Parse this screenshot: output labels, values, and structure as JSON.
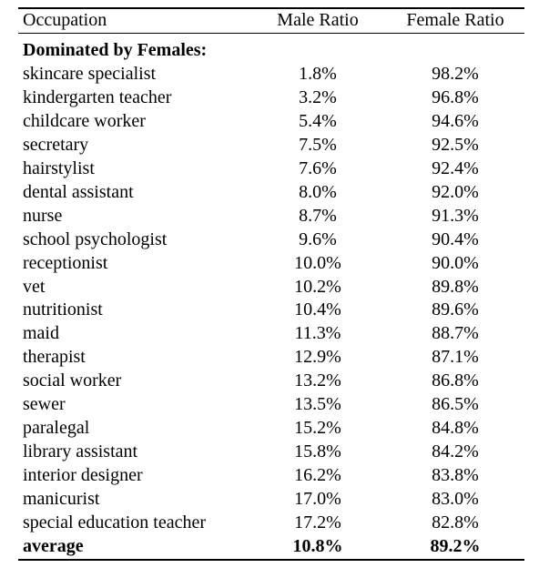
{
  "table": {
    "header": [
      "Occupation",
      "Male Ratio",
      "Female Ratio"
    ],
    "section_title": "Dominated by Females:",
    "rows": [
      [
        "skincare specialist",
        "1.8%",
        "98.2%"
      ],
      [
        "kindergarten teacher",
        "3.2%",
        "96.8%"
      ],
      [
        "childcare worker",
        "5.4%",
        "94.6%"
      ],
      [
        "secretary",
        "7.5%",
        "92.5%"
      ],
      [
        "hairstylist",
        "7.6%",
        "92.4%"
      ],
      [
        "dental assistant",
        "8.0%",
        "92.0%"
      ],
      [
        "nurse",
        "8.7%",
        "91.3%"
      ],
      [
        "school psychologist",
        "9.6%",
        "90.4%"
      ],
      [
        "receptionist",
        "10.0%",
        "90.0%"
      ],
      [
        "vet",
        "10.2%",
        "89.8%"
      ],
      [
        "nutritionist",
        "10.4%",
        "89.6%"
      ],
      [
        "maid",
        "11.3%",
        "88.7%"
      ],
      [
        "therapist",
        "12.9%",
        "87.1%"
      ],
      [
        "social worker",
        "13.2%",
        "86.8%"
      ],
      [
        "sewer",
        "13.5%",
        "86.5%"
      ],
      [
        "paralegal",
        "15.2%",
        "84.8%"
      ],
      [
        "library assistant",
        "15.8%",
        "84.2%"
      ],
      [
        "interior designer",
        "16.2%",
        "83.8%"
      ],
      [
        "manicurist",
        "17.0%",
        "83.0%"
      ],
      [
        "special education teacher",
        "17.2%",
        "82.8%"
      ]
    ],
    "average_row": [
      "average",
      "10.8%",
      "89.2%"
    ]
  }
}
